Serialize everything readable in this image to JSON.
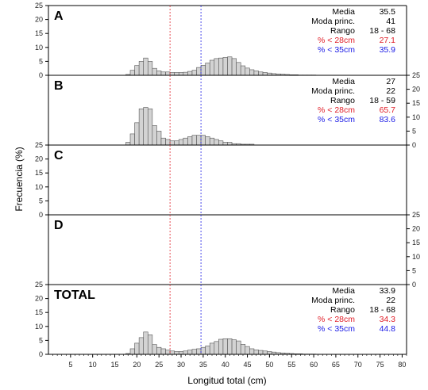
{
  "chart_data": {
    "type": "bar",
    "title": "",
    "xlabel": "Longitud total (cm)",
    "ylabel": "Frecuencia (%)",
    "xlim": [
      0,
      81
    ],
    "ylim": [
      0,
      25
    ],
    "x_ticks": [
      5,
      10,
      15,
      20,
      25,
      30,
      35,
      40,
      45,
      50,
      55,
      60,
      65,
      70,
      75,
      80
    ],
    "y_ticks": [
      0,
      5,
      10,
      15,
      20,
      25
    ],
    "grid": false,
    "bar_color": "#d3d3d3",
    "bar_edge_color": "#555555",
    "reference_lines": [
      {
        "x": 27.5,
        "color": "#e0202a",
        "style": "dashed"
      },
      {
        "x": 34.5,
        "color": "#1a1ae6",
        "style": "dashed"
      }
    ],
    "panels": [
      {
        "label": "A",
        "y_axis_side": "left",
        "x": [
          18,
          19,
          20,
          21,
          22,
          23,
          24,
          25,
          26,
          27,
          28,
          29,
          30,
          31,
          32,
          33,
          34,
          35,
          36,
          37,
          38,
          39,
          40,
          41,
          42,
          43,
          44,
          45,
          46,
          47,
          48,
          49,
          50,
          51,
          52,
          53,
          54,
          55,
          56,
          57,
          58,
          59,
          60
        ],
        "values": [
          0.3,
          1.8,
          3.5,
          5.0,
          6.2,
          5.0,
          2.5,
          1.6,
          1.2,
          1.2,
          1.0,
          1.0,
          1.0,
          1.1,
          1.4,
          1.8,
          2.8,
          3.6,
          4.4,
          5.4,
          6.0,
          6.2,
          6.4,
          6.6,
          6.0,
          4.6,
          3.4,
          2.6,
          2.0,
          1.6,
          1.2,
          1.0,
          0.8,
          0.6,
          0.5,
          0.4,
          0.3,
          0.2,
          0.2,
          0.1,
          0.1,
          0.1,
          0.1
        ],
        "stats": [
          {
            "label": "Media",
            "value": "35.5",
            "color": "#000000"
          },
          {
            "label": "Moda princ.",
            "value": "41",
            "color": "#000000"
          },
          {
            "label": "Rango",
            "value": "18 - 68",
            "color": "#000000"
          },
          {
            "label": "% < 28cm",
            "value": "27.1",
            "color": "#e0202a"
          },
          {
            "label": "% < 35cm",
            "value": "35.9",
            "color": "#1a1ae6"
          }
        ]
      },
      {
        "label": "B",
        "y_axis_side": "right",
        "x": [
          18,
          19,
          20,
          21,
          22,
          23,
          24,
          25,
          26,
          27,
          28,
          29,
          30,
          31,
          32,
          33,
          34,
          35,
          36,
          37,
          38,
          39,
          40,
          41,
          42,
          43,
          44,
          45,
          46
        ],
        "values": [
          1.0,
          4.0,
          8.0,
          13.0,
          13.5,
          13.0,
          7.0,
          5.0,
          2.5,
          2.0,
          1.5,
          1.5,
          2.0,
          2.5,
          3.0,
          3.5,
          3.5,
          3.5,
          3.0,
          2.5,
          2.0,
          1.5,
          1.0,
          1.0,
          0.5,
          0.5,
          0.3,
          0.3,
          0.3
        ],
        "stats": [
          {
            "label": "Media",
            "value": "27",
            "color": "#000000"
          },
          {
            "label": "Moda princ.",
            "value": "22",
            "color": "#000000"
          },
          {
            "label": "Rango",
            "value": "18 - 59",
            "color": "#000000"
          },
          {
            "label": "% < 28cm",
            "value": "65.7",
            "color": "#e0202a"
          },
          {
            "label": "% < 35cm",
            "value": "83.6",
            "color": "#1a1ae6"
          }
        ]
      },
      {
        "label": "C",
        "y_axis_side": "left",
        "x": [],
        "values": [],
        "stats": []
      },
      {
        "label": "D",
        "y_axis_side": "right",
        "x": [],
        "values": [],
        "stats": []
      },
      {
        "label": "TOTAL",
        "y_axis_side": "left",
        "x": [
          18,
          19,
          20,
          21,
          22,
          23,
          24,
          25,
          26,
          27,
          28,
          29,
          30,
          31,
          32,
          33,
          34,
          35,
          36,
          37,
          38,
          39,
          40,
          41,
          42,
          43,
          44,
          45,
          46,
          47,
          48,
          49,
          50,
          51,
          52,
          53,
          54,
          55,
          56,
          57,
          58,
          59,
          60
        ],
        "values": [
          0.3,
          2.0,
          4.0,
          6.0,
          8.0,
          7.0,
          3.5,
          2.5,
          2.0,
          1.5,
          1.2,
          1.0,
          1.0,
          1.2,
          1.5,
          1.8,
          2.0,
          2.5,
          3.0,
          4.0,
          4.6,
          5.4,
          5.6,
          5.6,
          5.2,
          4.8,
          3.6,
          2.8,
          2.0,
          1.6,
          1.4,
          1.2,
          1.0,
          0.8,
          0.6,
          0.5,
          0.4,
          0.3,
          0.2,
          0.2,
          0.1,
          0.1,
          0.1
        ],
        "stats": [
          {
            "label": "Media",
            "value": "33.9",
            "color": "#000000"
          },
          {
            "label": "Moda princ.",
            "value": "22",
            "color": "#000000"
          },
          {
            "label": "Rango",
            "value": "18 - 68",
            "color": "#000000"
          },
          {
            "label": "% < 28cm",
            "value": "34.3",
            "color": "#e0202a"
          },
          {
            "label": "% < 35cm",
            "value": "44.8",
            "color": "#1a1ae6"
          }
        ]
      }
    ]
  }
}
